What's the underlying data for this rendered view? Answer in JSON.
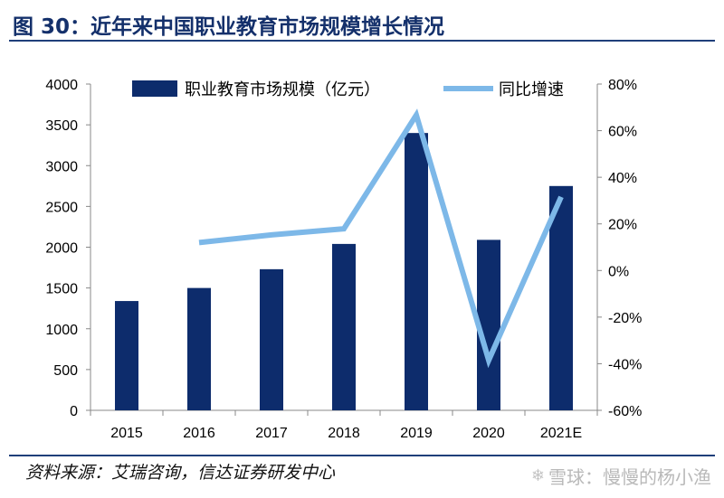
{
  "title": "图 30：近年来中国职业教育市场规模增长情况",
  "source": "资料来源：艾瑞咨询，信达证券研发中心",
  "watermark": {
    "logo_icon": "snowball-logo-icon",
    "text": "雪球：慢慢的杨小渔"
  },
  "chart_data": {
    "type": "bar+line",
    "categories": [
      "2015",
      "2016",
      "2017",
      "2018",
      "2019",
      "2020",
      "2021E"
    ],
    "series": [
      {
        "name": "职业教育市场规模（亿元）",
        "type": "bar",
        "axis": "left",
        "values": [
          1340,
          1500,
          1730,
          2040,
          3400,
          2090,
          2750
        ],
        "color": "#0d2c6c"
      },
      {
        "name": "同比增速",
        "type": "line",
        "axis": "right",
        "values": [
          null,
          12.0,
          15.3,
          17.9,
          66.7,
          -38.5,
          31.6
        ],
        "color": "#7db8e8"
      }
    ],
    "y_left": {
      "min": 0,
      "max": 4000,
      "ticks": [
        "0",
        "500",
        "1000",
        "1500",
        "2000",
        "2500",
        "3000",
        "3500",
        "4000"
      ]
    },
    "y_right": {
      "min": -60,
      "max": 80,
      "ticks": [
        "-60%",
        "-40%",
        "-20%",
        "0%",
        "20%",
        "40%",
        "60%",
        "80%"
      ]
    },
    "legend_position": "top",
    "grid": false
  }
}
